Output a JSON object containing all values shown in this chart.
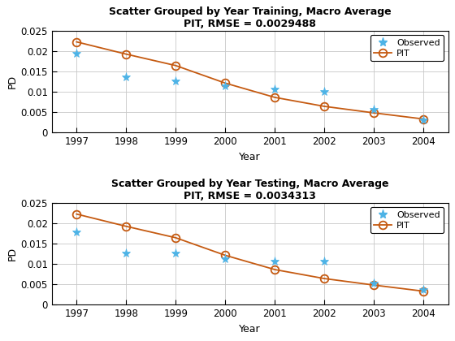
{
  "train": {
    "title_line1": "Scatter Grouped by Year Training, Macro Average",
    "title_line2": "PIT, RMSE = 0.0029488",
    "years": [
      1997,
      1998,
      1999,
      2000,
      2001,
      2002,
      2003,
      2004
    ],
    "observed": [
      0.0193,
      0.0135,
      0.0125,
      0.0113,
      0.0105,
      0.0099,
      0.0056,
      0.0031
    ],
    "pit": [
      0.0222,
      0.0192,
      0.0164,
      0.0121,
      0.0086,
      0.0064,
      0.0048,
      0.0033
    ]
  },
  "test": {
    "title_line1": "Scatter Grouped by Year Testing, Macro Average",
    "title_line2": "PIT, RMSE = 0.0034313",
    "years": [
      1997,
      1998,
      1999,
      2000,
      2001,
      2002,
      2003,
      2004
    ],
    "observed": [
      0.0178,
      0.0125,
      0.0125,
      0.0112,
      0.0105,
      0.0105,
      0.0052,
      0.0037
    ],
    "pit": [
      0.0222,
      0.0192,
      0.0164,
      0.0121,
      0.0086,
      0.0064,
      0.0048,
      0.0033
    ]
  },
  "xlabel": "Year",
  "ylabel": "PD",
  "ylim": [
    0,
    0.025
  ],
  "observed_color": "#4db3e6",
  "pit_color": "#c55a11",
  "background_color": "#ffffff",
  "grid_color": "#c8c8c8"
}
